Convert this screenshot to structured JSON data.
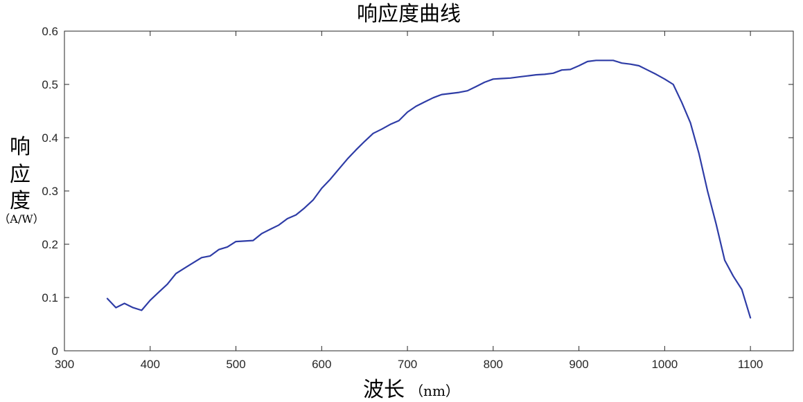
{
  "chart_data": {
    "type": "line",
    "title": "响应度曲线",
    "xlabel": "波长",
    "xunit": "（nm）",
    "ylabel_chars": [
      "响",
      "应",
      "度"
    ],
    "yunit": "（A/W）",
    "xlim": [
      300,
      1150
    ],
    "ylim": [
      0,
      0.6
    ],
    "xticks": [
      300,
      400,
      500,
      600,
      700,
      800,
      900,
      1000,
      1100
    ],
    "yticks": [
      0,
      0.1,
      0.2,
      0.3,
      0.4,
      0.5,
      0.6
    ],
    "ytick_labels": [
      "0",
      "0.1",
      "0.2",
      "0.3",
      "0.4",
      "0.5",
      "0.6"
    ],
    "grid": false,
    "line_color": "#2e3ca6",
    "series": [
      {
        "x": [
          350,
          360,
          370,
          380,
          390,
          400,
          410,
          420,
          430,
          440,
          450,
          460,
          470,
          480,
          490,
          500,
          510,
          520,
          530,
          540,
          550,
          560,
          570,
          580,
          590,
          600,
          610,
          620,
          630,
          640,
          650,
          660,
          670,
          680,
          690,
          700,
          710,
          720,
          730,
          740,
          750,
          760,
          770,
          780,
          790,
          800,
          810,
          820,
          830,
          840,
          850,
          860,
          870,
          880,
          890,
          900,
          910,
          920,
          930,
          940,
          950,
          960,
          970,
          980,
          990,
          1000,
          1010,
          1020,
          1030,
          1040,
          1050,
          1060,
          1070,
          1080,
          1090,
          1100
        ],
        "y": [
          0.098,
          0.081,
          0.089,
          0.081,
          0.076,
          0.095,
          0.11,
          0.125,
          0.145,
          0.155,
          0.165,
          0.175,
          0.178,
          0.19,
          0.195,
          0.205,
          0.206,
          0.207,
          0.22,
          0.228,
          0.236,
          0.248,
          0.255,
          0.268,
          0.283,
          0.305,
          0.322,
          0.341,
          0.36,
          0.377,
          0.393,
          0.408,
          0.416,
          0.425,
          0.432,
          0.448,
          0.459,
          0.467,
          0.475,
          0.481,
          0.483,
          0.485,
          0.488,
          0.496,
          0.504,
          0.51,
          0.511,
          0.512,
          0.514,
          0.516,
          0.518,
          0.519,
          0.521,
          0.527,
          0.528,
          0.535,
          0.543,
          0.545,
          0.545,
          0.545,
          0.54,
          0.538,
          0.535,
          0.527,
          0.519,
          0.51,
          0.5,
          0.466,
          0.428,
          0.37,
          0.3,
          0.238,
          0.17,
          0.14,
          0.115,
          0.062
        ]
      }
    ]
  }
}
